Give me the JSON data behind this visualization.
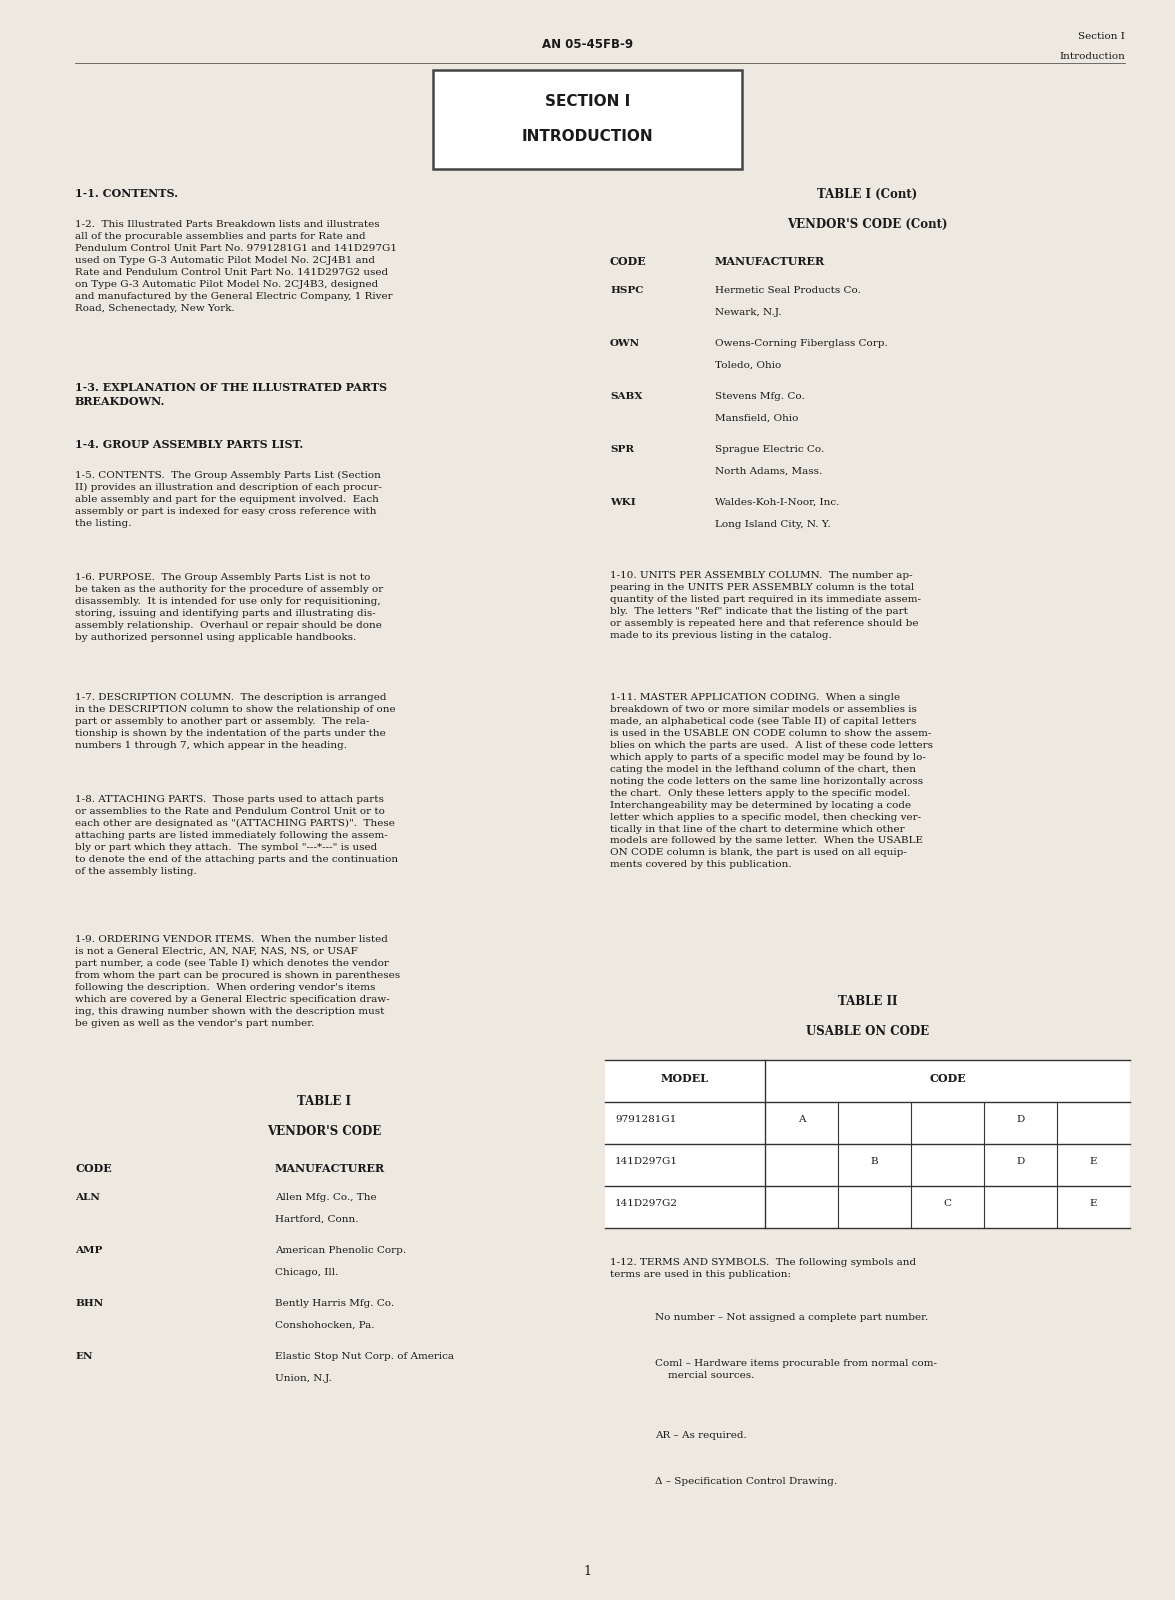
{
  "bg_color": "#ede9e0",
  "text_color": "#1a1a1a",
  "header_center": "AN 05-45FB-9",
  "header_right_line1": "Section I",
  "header_right_line2": "Introduction",
  "section_box_line1": "SECTION I",
  "section_box_line2": "INTRODUCTION",
  "page_number": "1",
  "table1cont_rows": [
    [
      "HSPC",
      "Hermetic Seal Products Co.",
      "Newark, N.J."
    ],
    [
      "OWN",
      "Owens-Corning Fiberglass Corp.",
      "Toledo, Ohio"
    ],
    [
      "SABX",
      "Stevens Mfg. Co.",
      "Mansfield, Ohio"
    ],
    [
      "SPR",
      "Sprague Electric Co.",
      "North Adams, Mass."
    ],
    [
      "WKI",
      "Waldes-Koh-I-Noor, Inc.",
      "Long Island City, N. Y."
    ]
  ],
  "table1_rows": [
    [
      "ALN",
      "Allen Mfg. Co., The",
      "Hartford, Conn."
    ],
    [
      "AMP",
      "American Phenolic Corp.",
      "Chicago, Ill."
    ],
    [
      "BHN",
      "Bently Harris Mfg. Co.",
      "Conshohocken, Pa."
    ],
    [
      "EN",
      "Elastic Stop Nut Corp. of America",
      "Union, N.J."
    ]
  ],
  "table2_models": [
    "9791281G1",
    "141D297G1",
    "141D297G2"
  ],
  "table2_codes": [
    "A",
    "B",
    "C",
    "D",
    "E"
  ],
  "table2_data": [
    [
      "A",
      "",
      "",
      "D",
      ""
    ],
    [
      "",
      "B",
      "",
      "D",
      "E"
    ],
    [
      "",
      "",
      "C",
      "",
      "E"
    ]
  ],
  "terms": [
    "No number – Not assigned a complete part number.",
    "Coml – Hardware items procurable from normal com-\n    mercial sources.",
    "AR – As required.",
    "Δ – Specification Control Drawing."
  ]
}
